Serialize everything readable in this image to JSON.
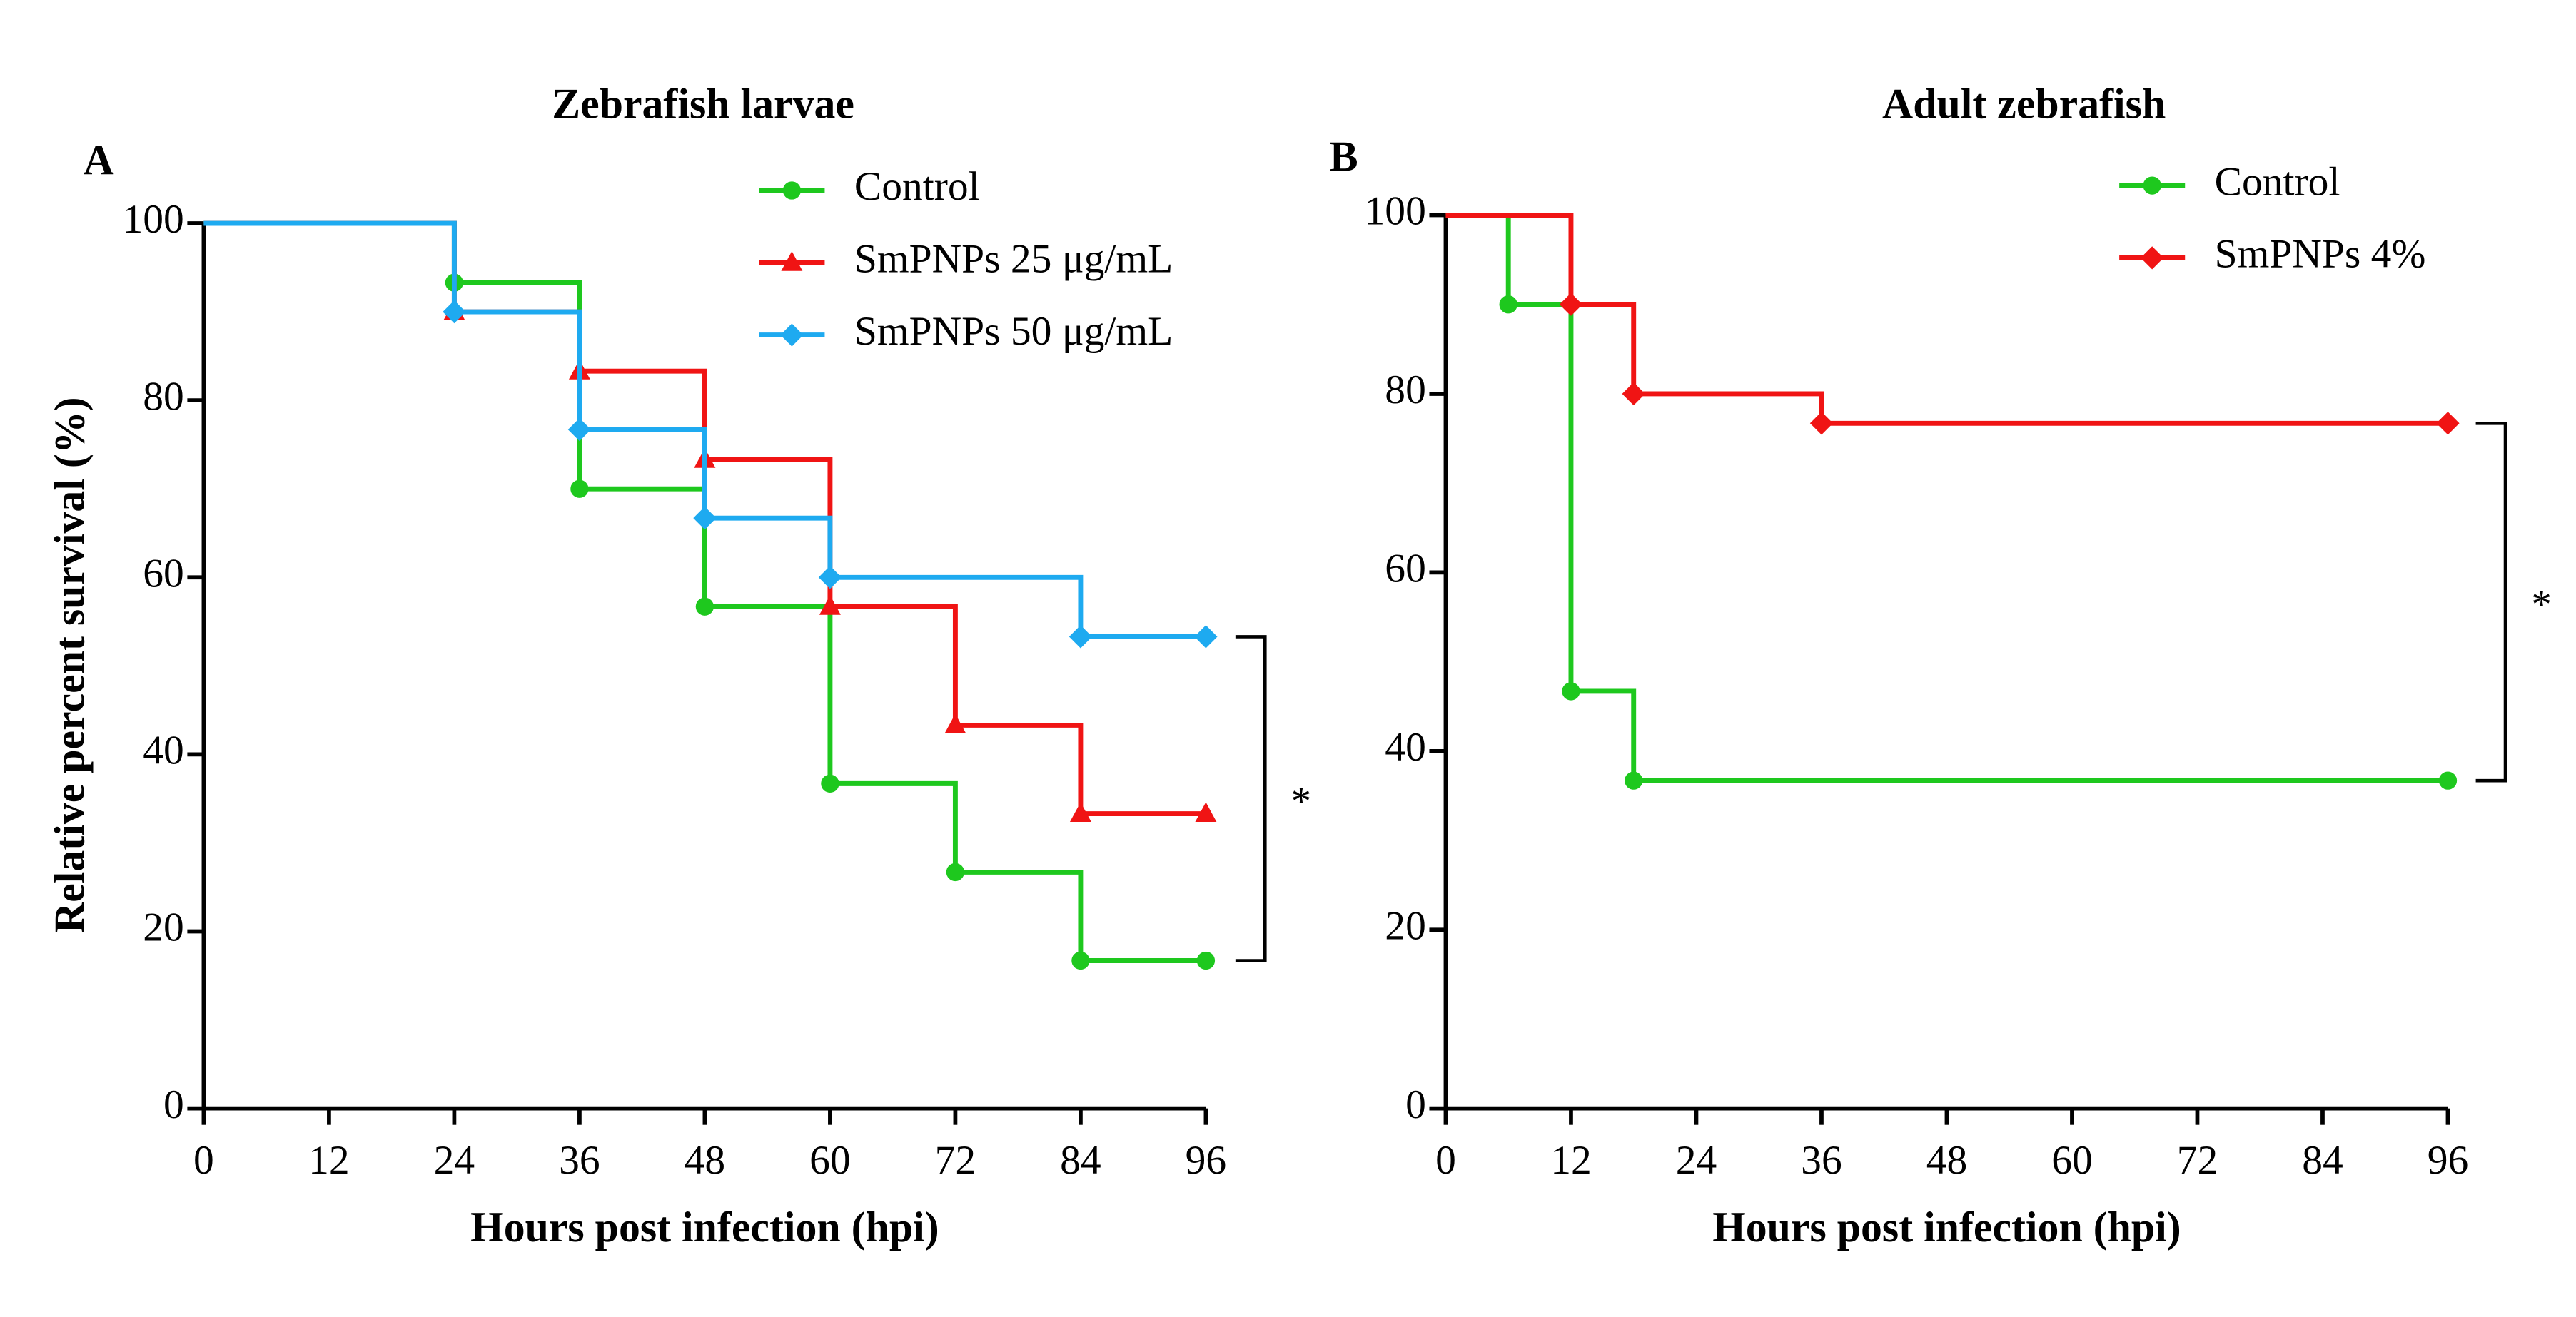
{
  "chart_data": [
    {
      "type": "line",
      "step": true,
      "panel_label": "A",
      "title": "Zebrafish larvae",
      "xlabel": "Hours post infection (hpi)",
      "ylabel": "Relative percent survival  (%)",
      "xlim": [
        0,
        96
      ],
      "xticks": [
        0,
        12,
        24,
        36,
        48,
        60,
        72,
        84,
        96
      ],
      "ylim": [
        0,
        100
      ],
      "yticks": [
        0,
        20,
        40,
        60,
        80,
        100
      ],
      "series": [
        {
          "name": "Control",
          "color": "#1ec81e",
          "marker": "circle",
          "x": [
            0,
            24,
            36,
            48,
            60,
            72,
            84,
            96
          ],
          "values": [
            100,
            93.3,
            70,
            56.7,
            36.7,
            26.7,
            16.7,
            16.7
          ]
        },
        {
          "name": "SmPNPs 25 μg/mL",
          "color": "#f01414",
          "marker": "triangle",
          "x": [
            0,
            24,
            36,
            48,
            60,
            72,
            84,
            96
          ],
          "values": [
            100,
            90,
            83.3,
            73.3,
            56.7,
            43.3,
            33.3,
            33.3
          ]
        },
        {
          "name": "SmPNPs 50 μg/mL",
          "color": "#1eaaf0",
          "marker": "diamond",
          "x": [
            0,
            24,
            36,
            48,
            60,
            84,
            96
          ],
          "values": [
            100,
            90,
            76.7,
            66.7,
            60,
            53.3,
            53.3
          ]
        }
      ],
      "annotation": "*"
    },
    {
      "type": "line",
      "step": true,
      "panel_label": "B",
      "title": "Adult zebrafish",
      "xlabel": "Hours post infection (hpi)",
      "xlim": [
        0,
        96
      ],
      "xticks": [
        0,
        12,
        24,
        36,
        48,
        60,
        72,
        84,
        96
      ],
      "ylim": [
        0,
        100
      ],
      "yticks": [
        0,
        20,
        40,
        60,
        80,
        100
      ],
      "series": [
        {
          "name": "Control",
          "color": "#1ec81e",
          "marker": "circle",
          "x": [
            0,
            6,
            12,
            18,
            96
          ],
          "values": [
            100,
            90,
            46.7,
            36.7,
            36.7
          ]
        },
        {
          "name": "SmPNPs 4%",
          "color": "#f01414",
          "marker": "diamond",
          "x": [
            0,
            12,
            18,
            36,
            96
          ],
          "values": [
            100,
            90,
            80,
            76.7,
            76.7
          ]
        }
      ],
      "annotation": "*"
    }
  ]
}
